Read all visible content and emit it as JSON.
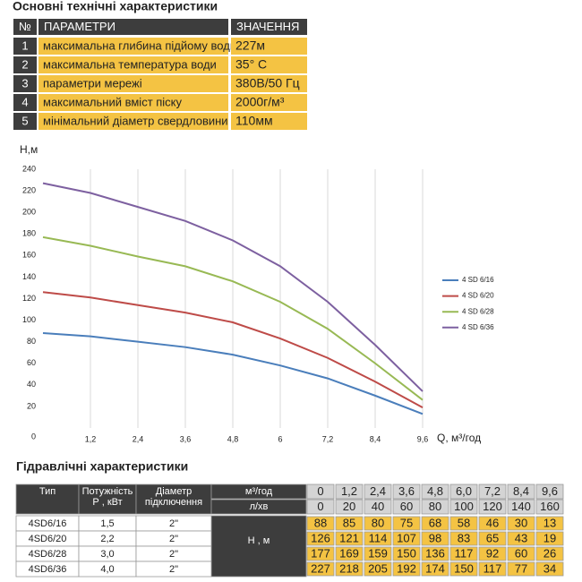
{
  "spec_title": "Основні технічні характеристики",
  "spec_table": {
    "header": [
      "№",
      "ПАРАМЕТРИ",
      "ЗНАЧЕННЯ"
    ],
    "rows": [
      [
        "1",
        "максимальна глибина підйому води",
        "227м"
      ],
      [
        "2",
        "максимальна температура води",
        "35° С"
      ],
      [
        "3",
        "параметри мережі",
        "380В/50 Гц"
      ],
      [
        "4",
        "максимальний вміст піску",
        "2000г/м³"
      ],
      [
        "5",
        "мінімальний діаметр свердловини",
        "110мм"
      ]
    ]
  },
  "chart_data": {
    "type": "line",
    "ylabel": "Н,м",
    "xlabel": "Q,  м³/год",
    "x": [
      0,
      1.2,
      2.4,
      3.6,
      4.8,
      6,
      7.2,
      8.4,
      9.6
    ],
    "xlim": [
      0,
      9.6
    ],
    "xticks": [
      {
        "value": 1.2,
        "label": "1,2"
      },
      {
        "value": 2.4,
        "label": "2,4"
      },
      {
        "value": 3.6,
        "label": "3,6"
      },
      {
        "value": 4.8,
        "label": "4,8"
      },
      6,
      {
        "value": 7.2,
        "label": "7,2"
      },
      {
        "value": 8.4,
        "label": "8,4"
      },
      {
        "value": 9.6,
        "label": "9,6"
      }
    ],
    "ylim": [
      0,
      240
    ],
    "yticks": [
      0,
      20,
      40,
      60,
      80,
      100,
      120,
      140,
      160,
      180,
      200,
      220,
      240
    ],
    "grid": "x",
    "legend": "right",
    "series": [
      {
        "name": "4 SD 6/16",
        "color": "#4a7ebb",
        "values": [
          88,
          85,
          80,
          75,
          68,
          58,
          46,
          30,
          13
        ]
      },
      {
        "name": "4 SD 6/20",
        "color": "#be4b48",
        "values": [
          126,
          121,
          114,
          107,
          98,
          83,
          65,
          43,
          19
        ]
      },
      {
        "name": "4 SD 6/28",
        "color": "#98b954",
        "values": [
          177,
          169,
          159,
          150,
          136,
          117,
          92,
          60,
          26
        ]
      },
      {
        "name": "4 SD 6/36",
        "color": "#7d60a0",
        "values": [
          227,
          218,
          205,
          192,
          174,
          150,
          117,
          77,
          34
        ]
      }
    ]
  },
  "hydraulic_title": "Гідравлічні характеристики",
  "hydraulic_table": {
    "type_header": "Тип",
    "power_header": [
      "Потужність",
      "Р , кВт"
    ],
    "diameter_header": [
      "Діаметр",
      "підключення"
    ],
    "flow_m3_label": "м³/год",
    "flow_lmin_label": "л/хв",
    "head_label": "Н , м",
    "flow_m3": [
      "0",
      "1,2",
      "2,4",
      "3,6",
      "4,8",
      "6,0",
      "7,2",
      "8,4",
      "9,6"
    ],
    "flow_lmin": [
      "0",
      "20",
      "40",
      "60",
      "80",
      "100",
      "120",
      "140",
      "160"
    ],
    "rows": [
      {
        "type": "4SD6/16",
        "power": "1,5",
        "diameter": "2\"",
        "head": [
          "88",
          "85",
          "80",
          "75",
          "68",
          "58",
          "46",
          "30",
          "13"
        ]
      },
      {
        "type": "4SD6/20",
        "power": "2,2",
        "diameter": "2\"",
        "head": [
          "126",
          "121",
          "114",
          "107",
          "98",
          "83",
          "65",
          "43",
          "19"
        ]
      },
      {
        "type": "4SD6/28",
        "power": "3,0",
        "diameter": "2\"",
        "head": [
          "177",
          "169",
          "159",
          "150",
          "136",
          "117",
          "92",
          "60",
          "26"
        ]
      },
      {
        "type": "4SD6/36",
        "power": "4,0",
        "diameter": "2\"",
        "head": [
          "227",
          "218",
          "205",
          "192",
          "174",
          "150",
          "117",
          "77",
          "34"
        ]
      }
    ]
  }
}
